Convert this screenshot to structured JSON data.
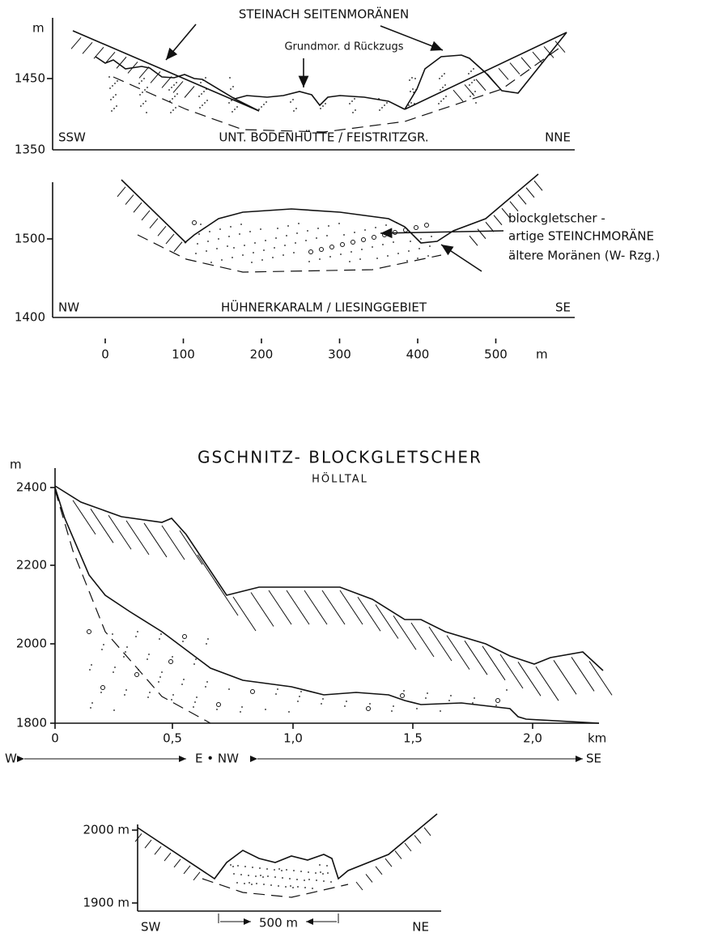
{
  "panel_a": {
    "title": "STEINACH SEITENMORÄNEN",
    "annotation": "Grundmor. d Rückzugs",
    "unit": "m",
    "yticks": [
      "1450",
      "1350"
    ],
    "left": "SSW",
    "center": "UNT. BODENHÜTTE / FEISTRITZGR.",
    "right": "NNE"
  },
  "panel_b": {
    "yticks": [
      "1500",
      "1400"
    ],
    "left": "NW",
    "center": "HÜHNERKARALM / LIESINGGEBIET",
    "right": "SE",
    "annotations": [
      "blockgletscher -",
      "artige STEINCHMORÄNE",
      "ältere Moränen (W- Rzg.)"
    ],
    "xticks": [
      "0",
      "100",
      "200",
      "300",
      "400",
      "500"
    ],
    "x_unit": "m"
  },
  "panel_c": {
    "title": "GSCHNITZ- BLOCKGLETSCHER",
    "subtitle": "HÖLLTAL",
    "unit": "m",
    "yticks": [
      "2400",
      "2200",
      "2000",
      "1800"
    ],
    "xticks": [
      "0",
      "0,5",
      "1,0",
      "1,5",
      "2,0"
    ],
    "x_unit": "km",
    "directions": [
      "W",
      "E • NW",
      "SE"
    ]
  },
  "panel_d": {
    "yticks": [
      "2000 m",
      "1900 m"
    ],
    "left": "SW",
    "right": "NE",
    "scale": "500 m"
  }
}
